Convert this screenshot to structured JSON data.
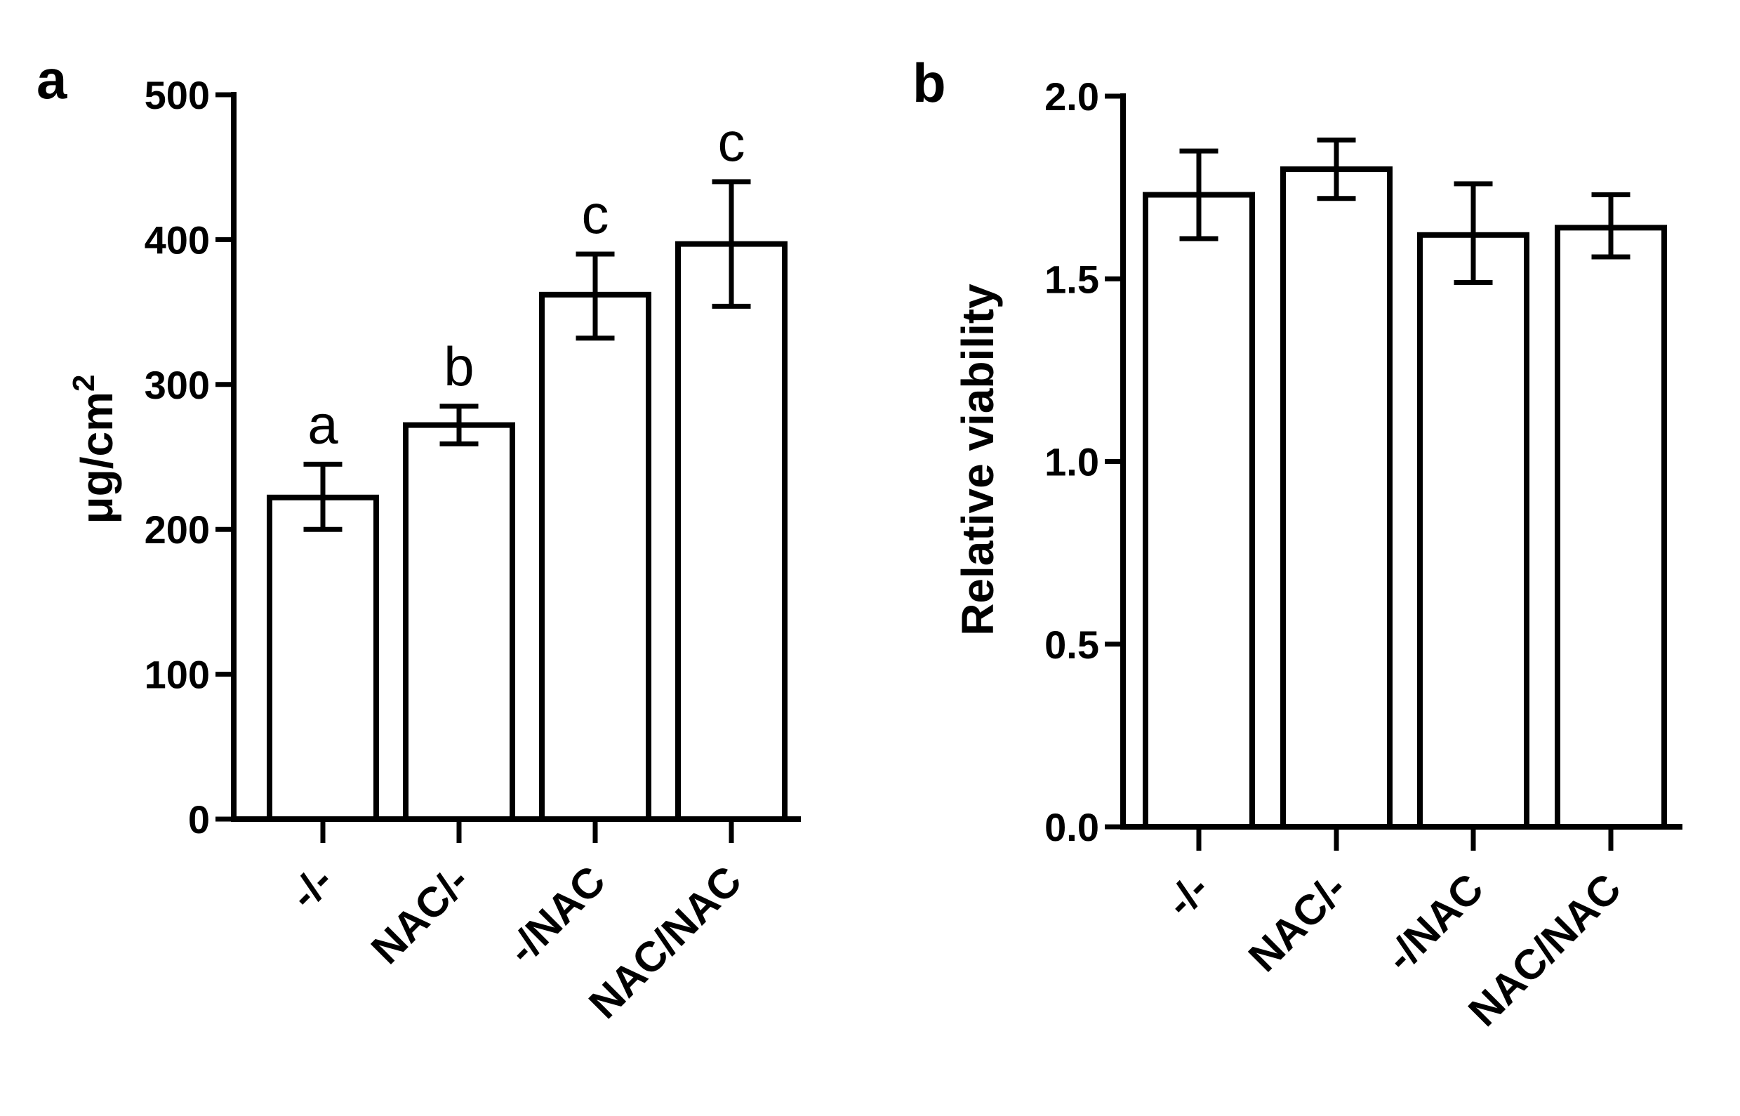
{
  "chart_data": [
    {
      "type": "bar",
      "panel_label": "a",
      "title": "",
      "xlabel": "",
      "ylabel": "μg/cm",
      "ylabel_superscript": "2",
      "categories": [
        "-/-",
        "NAC/-",
        "-/NAC",
        "NAC/NAC"
      ],
      "values": [
        222,
        272,
        362,
        397
      ],
      "error_low": [
        200,
        259,
        332,
        354
      ],
      "error_high": [
        245,
        285,
        390,
        440
      ],
      "significance_letters": [
        "a",
        "b",
        "c",
        "c"
      ],
      "ylim": [
        0,
        500
      ],
      "yticks": [
        0,
        100,
        200,
        300,
        400,
        500
      ],
      "ytick_labels": [
        "0",
        "100",
        "200",
        "300",
        "400",
        "500"
      ],
      "grid": false,
      "colors": {
        "bar_fill": "#ffffff",
        "bar_stroke": "#000000"
      }
    },
    {
      "type": "bar",
      "panel_label": "b",
      "title": "",
      "xlabel": "",
      "ylabel": "Relative viability",
      "categories": [
        "-/-",
        "NAC/-",
        "-/NAC",
        "NAC/NAC"
      ],
      "values": [
        1.73,
        1.8,
        1.62,
        1.64
      ],
      "error_low": [
        1.61,
        1.72,
        1.49,
        1.56
      ],
      "error_high": [
        1.85,
        1.88,
        1.76,
        1.73
      ],
      "ylim": [
        0,
        2.0
      ],
      "yticks": [
        0,
        0.5,
        1.0,
        1.5,
        2.0
      ],
      "ytick_labels": [
        "0.0",
        "0.5",
        "1.0",
        "1.5",
        "2.0"
      ],
      "grid": false,
      "colors": {
        "bar_fill": "#ffffff",
        "bar_stroke": "#000000"
      }
    }
  ]
}
